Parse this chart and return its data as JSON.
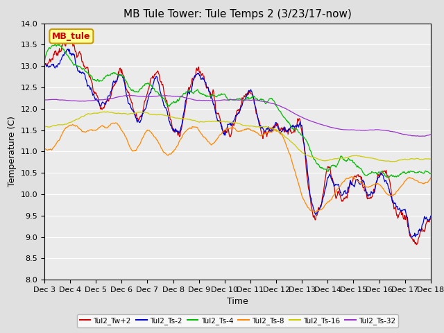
{
  "title": "MB Tule Tower: Tule Temps 2 (3/23/17-now)",
  "xlabel": "Time",
  "ylabel": "Temperature (C)",
  "ylim": [
    8.0,
    14.0
  ],
  "yticks": [
    8.0,
    8.5,
    9.0,
    9.5,
    10.0,
    10.5,
    11.0,
    11.5,
    12.0,
    12.5,
    13.0,
    13.5,
    14.0
  ],
  "x_labels": [
    "Dec 3",
    "Dec 4",
    "Dec 5",
    "Dec 6",
    "Dec 7",
    "Dec 8",
    "Dec 9",
    "Dec 10",
    "Dec 11",
    "Dec 12",
    "Dec 13",
    "Dec 14",
    "Dec 15",
    "Dec 16",
    "Dec 17",
    "Dec 18"
  ],
  "fig_bg_color": "#e0e0e0",
  "plot_bg_color": "#ebebeb",
  "grid_color": "#ffffff",
  "series_colors": {
    "Tul2_Tw+2": "#cc0000",
    "Tul2_Ts-2": "#0000cc",
    "Tul2_Ts-4": "#00bb00",
    "Tul2_Ts-8": "#ff8800",
    "Tul2_Ts-16": "#cccc00",
    "Tul2_Ts-32": "#9933cc"
  },
  "annotation": {
    "text": "MB_tule",
    "color": "#cc0000",
    "bg": "#ffff99",
    "edge": "#cc9900"
  },
  "title_fontsize": 11,
  "label_fontsize": 9,
  "tick_fontsize": 8
}
